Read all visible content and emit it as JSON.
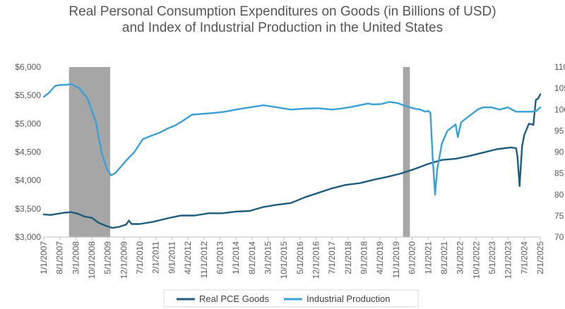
{
  "chart_data": {
    "type": "line",
    "title": "Real Personal Consumption Expenditures on Goods (in Billions of USD)",
    "subtitle": "and Index of Industrial Production in the United States",
    "left_axis": {
      "ylim": [
        3000,
        6000
      ],
      "ticks": [
        3000,
        3500,
        4000,
        4500,
        5000,
        5500,
        6000
      ],
      "tick_labels": [
        "$3,000",
        "$3,500",
        "$4,000",
        "$4,500",
        "$5,000",
        "$5,500",
        "$6,000"
      ]
    },
    "right_axis": {
      "ylim": [
        70,
        110
      ],
      "ticks": [
        70,
        75,
        80,
        85,
        90,
        95,
        100,
        105,
        110
      ],
      "tick_labels": [
        "70",
        "75",
        "80",
        "85",
        "90",
        "95",
        "100",
        "105",
        "110"
      ]
    },
    "x_range": [
      2007.0,
      2025.083
    ],
    "x_tick_labels": [
      "1/1/2007",
      "8/1/2007",
      "3/1/2008",
      "10/1/2008",
      "5/1/2009",
      "12/1/2009",
      "7/1/2010",
      "2/1/2011",
      "9/1/2011",
      "4/1/2012",
      "11/1/2012",
      "6/1/2013",
      "1/1/2014",
      "8/1/2014",
      "3/1/2015",
      "10/1/2015",
      "5/1/2016",
      "12/1/2016",
      "7/1/2017",
      "2/1/2018",
      "9/1/2018",
      "4/1/2019",
      "11/1/2019",
      "6/1/2020",
      "1/1/2021",
      "8/1/2021",
      "3/1/2022",
      "10/1/2022",
      "5/1/2023",
      "12/1/2023",
      "7/1/2024",
      "2/1/2025"
    ],
    "recessions": [
      [
        2007.917,
        2009.417
      ],
      [
        2020.083,
        2020.333
      ]
    ],
    "series": [
      {
        "name": "Real PCE Goods",
        "axis": "left",
        "color": "#1f5c7e",
        "points": [
          [
            2007.0,
            3400
          ],
          [
            2007.25,
            3390
          ],
          [
            2007.5,
            3410
          ],
          [
            2007.75,
            3430
          ],
          [
            2008.0,
            3440
          ],
          [
            2008.25,
            3410
          ],
          [
            2008.5,
            3360
          ],
          [
            2008.75,
            3340
          ],
          [
            2009.0,
            3250
          ],
          [
            2009.25,
            3200
          ],
          [
            2009.5,
            3160
          ],
          [
            2009.75,
            3180
          ],
          [
            2010.0,
            3220
          ],
          [
            2010.1,
            3290
          ],
          [
            2010.2,
            3230
          ],
          [
            2010.5,
            3230
          ],
          [
            2011.0,
            3270
          ],
          [
            2011.5,
            3330
          ],
          [
            2012.0,
            3380
          ],
          [
            2012.5,
            3380
          ],
          [
            2013.0,
            3420
          ],
          [
            2013.5,
            3420
          ],
          [
            2014.0,
            3450
          ],
          [
            2014.5,
            3460
          ],
          [
            2015.0,
            3530
          ],
          [
            2015.5,
            3570
          ],
          [
            2016.0,
            3600
          ],
          [
            2016.5,
            3700
          ],
          [
            2017.0,
            3780
          ],
          [
            2017.5,
            3860
          ],
          [
            2018.0,
            3920
          ],
          [
            2018.5,
            3950
          ],
          [
            2019.0,
            4010
          ],
          [
            2019.5,
            4060
          ],
          [
            2020.0,
            4120
          ],
          [
            2020.5,
            4200
          ],
          [
            2021.0,
            4290
          ],
          [
            2021.5,
            4360
          ],
          [
            2022.0,
            4380
          ],
          [
            2022.5,
            4430
          ],
          [
            2023.0,
            4490
          ],
          [
            2023.5,
            4550
          ],
          [
            2024.0,
            4580
          ],
          [
            2024.2,
            4570
          ],
          [
            2024.25,
            4430
          ],
          [
            2024.33,
            3900
          ],
          [
            2024.42,
            4600
          ],
          [
            2024.5,
            4800
          ],
          [
            2024.67,
            5000
          ],
          [
            2024.83,
            4980
          ],
          [
            2024.92,
            5420
          ],
          [
            2025.0,
            5440
          ],
          [
            2025.083,
            5520
          ]
        ]
      },
      {
        "name": "Industrial Production",
        "axis": "right",
        "color": "#3aa0d8",
        "points": [
          [
            2007.0,
            103
          ],
          [
            2007.2,
            104
          ],
          [
            2007.4,
            105.5
          ],
          [
            2007.6,
            105.8
          ],
          [
            2007.8,
            105.8
          ],
          [
            2008.0,
            106
          ],
          [
            2008.3,
            105
          ],
          [
            2008.6,
            102.5
          ],
          [
            2008.9,
            97
          ],
          [
            2009.1,
            90
          ],
          [
            2009.3,
            86
          ],
          [
            2009.45,
            84.5
          ],
          [
            2009.6,
            85
          ],
          [
            2009.8,
            86.5
          ],
          [
            2010.0,
            88
          ],
          [
            2010.3,
            90
          ],
          [
            2010.6,
            93
          ],
          [
            2010.9,
            93.8
          ],
          [
            2011.2,
            94.5
          ],
          [
            2011.5,
            95.5
          ],
          [
            2011.8,
            96.3
          ],
          [
            2012.1,
            97.5
          ],
          [
            2012.4,
            98.8
          ],
          [
            2012.8,
            99
          ],
          [
            2013.2,
            99.2
          ],
          [
            2013.6,
            99.5
          ],
          [
            2014.0,
            100
          ],
          [
            2014.5,
            100.5
          ],
          [
            2015.0,
            101
          ],
          [
            2015.5,
            100.5
          ],
          [
            2016.0,
            100
          ],
          [
            2016.5,
            100.2
          ],
          [
            2017.0,
            100.3
          ],
          [
            2017.5,
            100
          ],
          [
            2017.9,
            100.3
          ],
          [
            2018.2,
            100.6
          ],
          [
            2018.5,
            101
          ],
          [
            2018.8,
            101.4
          ],
          [
            2019.0,
            101.2
          ],
          [
            2019.3,
            101.3
          ],
          [
            2019.6,
            101.8
          ],
          [
            2019.9,
            101.5
          ],
          [
            2020.1,
            101
          ],
          [
            2020.3,
            100.6
          ],
          [
            2020.5,
            100.2
          ],
          [
            2020.7,
            100
          ],
          [
            2020.9,
            99.5
          ],
          [
            2021.0,
            99.7
          ],
          [
            2021.08,
            99.2
          ],
          [
            2021.17,
            88
          ],
          [
            2021.25,
            80
          ],
          [
            2021.33,
            86
          ],
          [
            2021.5,
            92
          ],
          [
            2021.7,
            95
          ],
          [
            2021.9,
            96
          ],
          [
            2022.0,
            96.5
          ],
          [
            2022.08,
            93.5
          ],
          [
            2022.2,
            97
          ],
          [
            2022.4,
            98
          ],
          [
            2022.6,
            99
          ],
          [
            2022.8,
            100
          ],
          [
            2023.0,
            100.5
          ],
          [
            2023.3,
            100.5
          ],
          [
            2023.6,
            100
          ],
          [
            2023.9,
            100.5
          ],
          [
            2024.2,
            99.5
          ],
          [
            2024.5,
            99.5
          ],
          [
            2024.8,
            99.5
          ],
          [
            2024.95,
            99.7
          ],
          [
            2025.083,
            100.5
          ]
        ]
      }
    ],
    "legend": [
      "Real PCE Goods",
      "Industrial Production"
    ],
    "legend_position": "bottom-center",
    "grid": false
  }
}
